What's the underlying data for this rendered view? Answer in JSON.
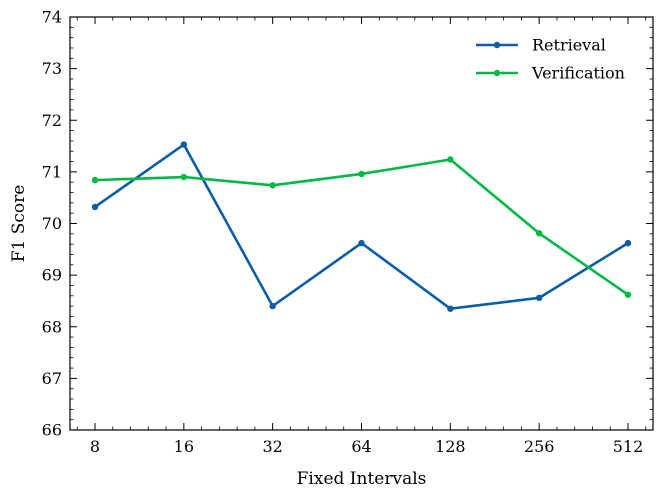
{
  "chart_data": {
    "type": "line",
    "title": "",
    "xlabel": "Fixed Intervals",
    "ylabel": "F1 Score",
    "categories": [
      "8",
      "16",
      "32",
      "64",
      "128",
      "256",
      "512"
    ],
    "ylim": [
      66,
      74
    ],
    "yticks": [
      "66",
      "67",
      "68",
      "69",
      "70",
      "71",
      "72",
      "73",
      "74"
    ],
    "grid": false,
    "legend_position": "top-right",
    "series": [
      {
        "name": "Retrieval",
        "color": "#0c5da5",
        "values": [
          70.32,
          71.53,
          68.4,
          69.62,
          68.35,
          68.56,
          69.62
        ]
      },
      {
        "name": "Verification",
        "color": "#00b945",
        "values": [
          70.84,
          70.9,
          70.74,
          70.96,
          71.24,
          69.81,
          68.62
        ]
      }
    ]
  }
}
